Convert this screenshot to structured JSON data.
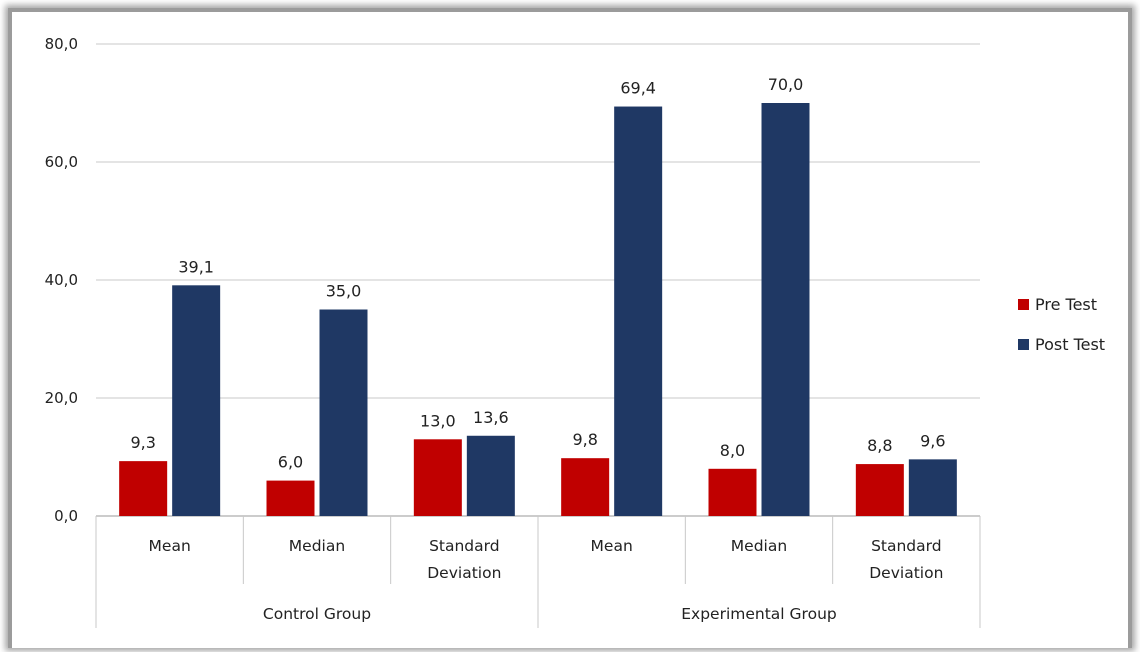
{
  "chart_data": {
    "type": "bar",
    "title": "",
    "xlabel": "",
    "ylabel": "",
    "ylim": [
      0,
      80
    ],
    "y_ticks": [
      "0,0",
      "20,0",
      "40,0",
      "60,0",
      "80,0"
    ],
    "y_tick_values": [
      0,
      20,
      40,
      60,
      80
    ],
    "grid": true,
    "legend_position": "right",
    "groups": [
      {
        "name": "Control Group",
        "categories": [
          [
            "Mean"
          ],
          [
            "Median"
          ],
          [
            "Standard",
            "Deviation"
          ]
        ]
      },
      {
        "name": "Experimental Group",
        "categories": [
          [
            "Mean"
          ],
          [
            "Median"
          ],
          [
            "Standard",
            "Deviation"
          ]
        ]
      }
    ],
    "series": [
      {
        "name": "Pre Test",
        "color": "#c00000",
        "values": [
          9.3,
          6.0,
          13.0,
          9.8,
          8.0,
          8.8
        ],
        "labels": [
          "9,3",
          "6,0",
          "13,0",
          "9,8",
          "8,0",
          "8,8"
        ]
      },
      {
        "name": "Post Test",
        "color": "#1f3864",
        "values": [
          39.1,
          35.0,
          13.6,
          69.4,
          70.0,
          9.6
        ],
        "labels": [
          "39,1",
          "35,0",
          "13,6",
          "69,4",
          "70,0",
          "9,6"
        ]
      }
    ]
  }
}
